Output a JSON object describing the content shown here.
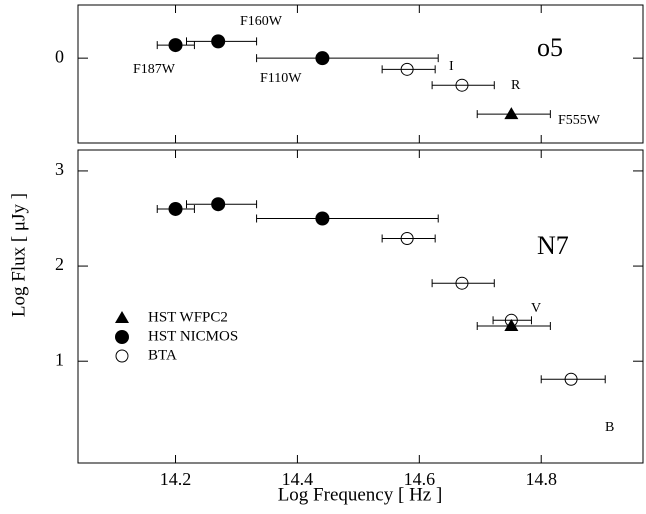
{
  "chart_data": [
    {
      "type": "scatter",
      "label": "o5",
      "xlim": [
        14.04,
        14.967
      ],
      "xticks": [
        14.2,
        14.4,
        14.6,
        14.8
      ],
      "ylim": [
        -0.91,
        0.57
      ],
      "yticks": [
        0
      ],
      "annotations": [
        "F187W",
        "F160W",
        "F110W",
        "I",
        "R",
        "F555W"
      ],
      "series": [
        {
          "marker": "filled-circle",
          "color": "#000000",
          "x": [
            14.2,
            14.27,
            14.441
          ],
          "values": [
            0.14,
            0.18,
            0.0
          ],
          "xmin": [
            14.17,
            14.218,
            14.333
          ],
          "xmax": [
            14.231,
            14.333,
            14.631
          ]
        },
        {
          "marker": "open-circle",
          "color": "#000000",
          "x": [
            14.58,
            14.67
          ],
          "values": [
            -0.12,
            -0.29
          ],
          "xmin": [
            14.539,
            14.621
          ],
          "xmax": [
            14.626,
            14.723
          ]
        },
        {
          "marker": "triangle",
          "color": "#000000",
          "x": [
            14.751
          ],
          "values": [
            -0.6
          ],
          "xmin": [
            14.695
          ],
          "xmax": [
            14.815
          ]
        }
      ]
    },
    {
      "type": "scatter",
      "label": "N7",
      "xlabel": "Log Frequency  [ Hz ]",
      "ylabel": "Log Flux  [ μJy ]",
      "xlim": [
        14.04,
        14.967
      ],
      "xticks": [
        14.2,
        14.4,
        14.6,
        14.8
      ],
      "ylim": [
        -0.07,
        3.22
      ],
      "yticks": [
        1,
        2,
        3
      ],
      "annotations": [
        "V",
        "B"
      ],
      "legend": "lower left",
      "series": [
        {
          "name": "HST  WFPC2",
          "marker": "triangle",
          "color": "#000000",
          "x": [
            14.751
          ],
          "values": [
            1.37
          ],
          "xmin": [
            14.695
          ],
          "xmax": [
            14.815
          ]
        },
        {
          "name": "HST  NICMOS",
          "marker": "filled-circle",
          "color": "#000000",
          "x": [
            14.2,
            14.27,
            14.441
          ],
          "values": [
            2.6,
            2.65,
            2.5
          ],
          "xmin": [
            14.17,
            14.218,
            14.333
          ],
          "xmax": [
            14.231,
            14.333,
            14.631
          ]
        },
        {
          "name": "BTA",
          "marker": "open-circle",
          "color": "#000000",
          "x": [
            14.58,
            14.67,
            14.751,
            14.849
          ],
          "values": [
            2.29,
            1.82,
            1.43,
            0.81
          ],
          "xmin": [
            14.539,
            14.621,
            14.721,
            14.8
          ],
          "xmax": [
            14.626,
            14.723,
            14.784,
            14.905
          ]
        }
      ]
    }
  ]
}
